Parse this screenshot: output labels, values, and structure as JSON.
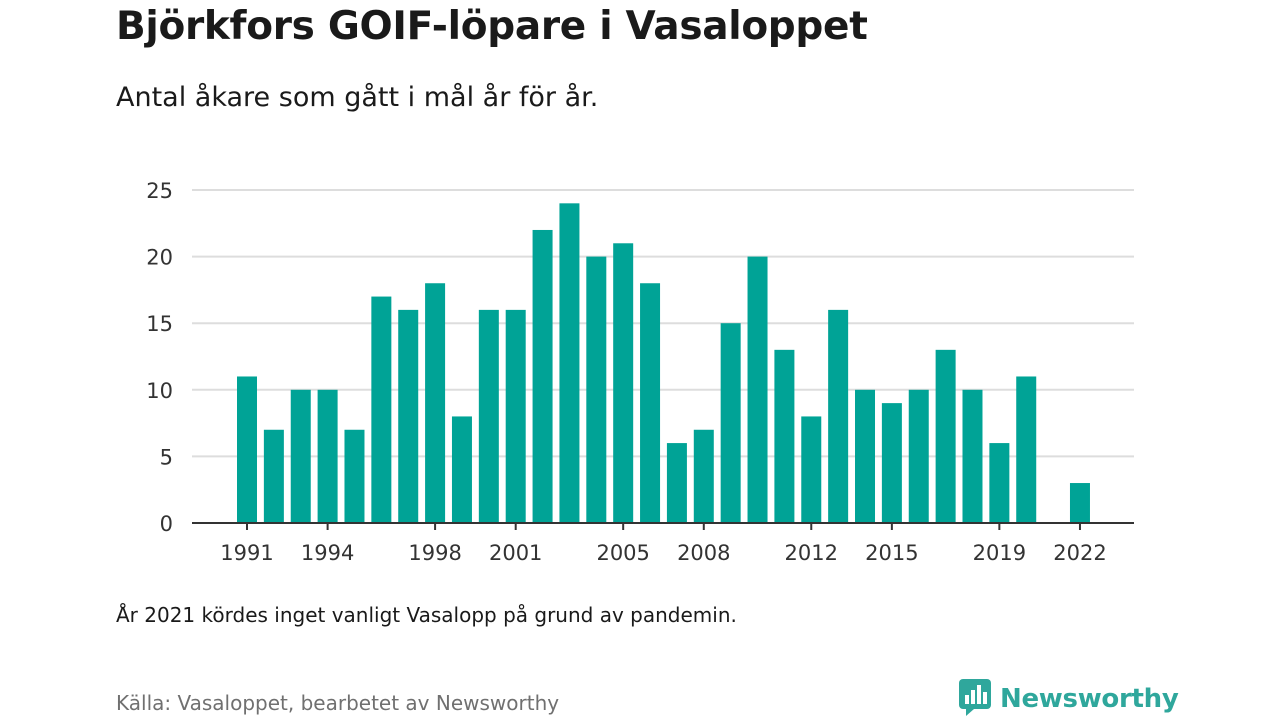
{
  "header": {
    "title": "Björkfors GOIF-löpare i Vasaloppet",
    "subtitle": "Antal åkare som gått i mål år för år."
  },
  "footer": {
    "note": "År 2021 kördes inget vanligt Vasalopp på grund av pandemin.",
    "source": "Källa: Vasaloppet, bearbetet av Newsworthy",
    "brand": "Newsworthy",
    "brand_icon": "newsworthy-logo-icon"
  },
  "colors": {
    "bar": "#00a396",
    "grid": "#dddddd",
    "axis": "#333333",
    "brand": "#2fa79c"
  },
  "chart_data": {
    "type": "bar",
    "title": "Björkfors GOIF-löpare i Vasaloppet",
    "subtitle": "Antal åkare som gått i mål år för år.",
    "xlabel": "",
    "ylabel": "",
    "categories": [
      1991,
      1992,
      1993,
      1994,
      1995,
      1996,
      1997,
      1998,
      1999,
      2000,
      2001,
      2002,
      2003,
      2004,
      2005,
      2006,
      2007,
      2008,
      2009,
      2010,
      2011,
      2012,
      2013,
      2014,
      2015,
      2016,
      2017,
      2018,
      2019,
      2020,
      2021,
      2022
    ],
    "values": [
      11,
      7,
      10,
      10,
      7,
      17,
      16,
      18,
      8,
      16,
      16,
      22,
      24,
      20,
      21,
      18,
      6,
      7,
      15,
      20,
      13,
      8,
      16,
      10,
      9,
      10,
      13,
      10,
      6,
      11,
      null,
      3
    ],
    "ylim": [
      0,
      25
    ],
    "yticks": [
      0,
      5,
      10,
      15,
      20,
      25
    ],
    "xtick_labels": [
      1991,
      1994,
      1998,
      2001,
      2005,
      2008,
      2012,
      2015,
      2019,
      2022
    ],
    "grid": true,
    "legend": "none"
  }
}
